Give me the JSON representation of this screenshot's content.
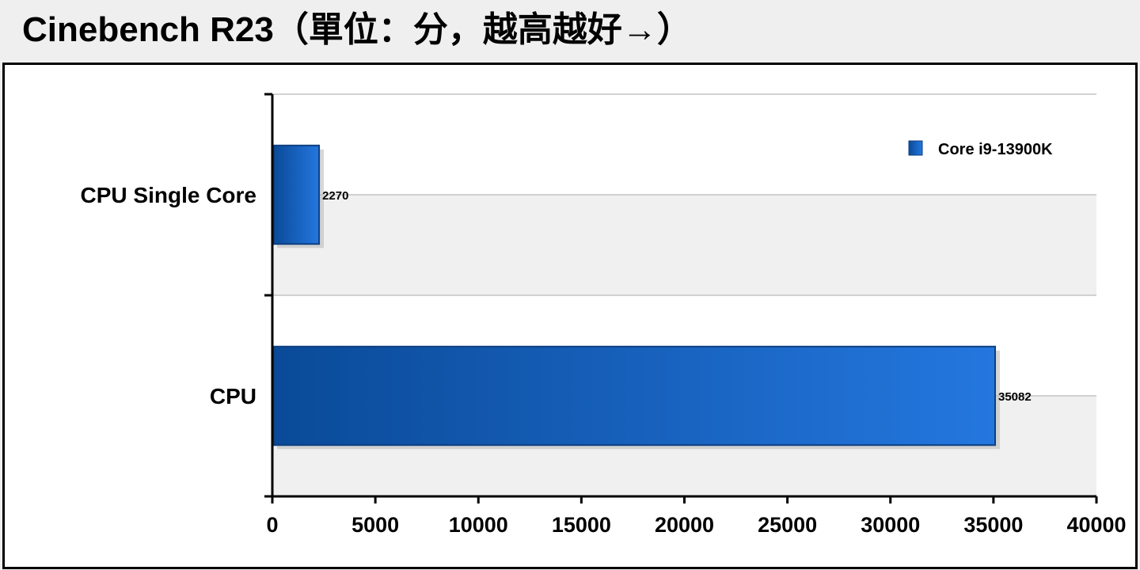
{
  "title": "Cinebench R23（單位：分，越高越好→）",
  "chart_data": {
    "type": "bar",
    "orientation": "horizontal",
    "categories": [
      "CPU Single Core",
      "CPU"
    ],
    "series": [
      {
        "name": "Core i9-13900K",
        "values": [
          2270,
          35082
        ],
        "color": "#1f6ad6"
      }
    ],
    "xlim": [
      0,
      40000
    ],
    "x_ticks": [
      0,
      5000,
      10000,
      15000,
      20000,
      25000,
      30000,
      35000,
      40000
    ],
    "grid": true,
    "legend": "top-right"
  }
}
